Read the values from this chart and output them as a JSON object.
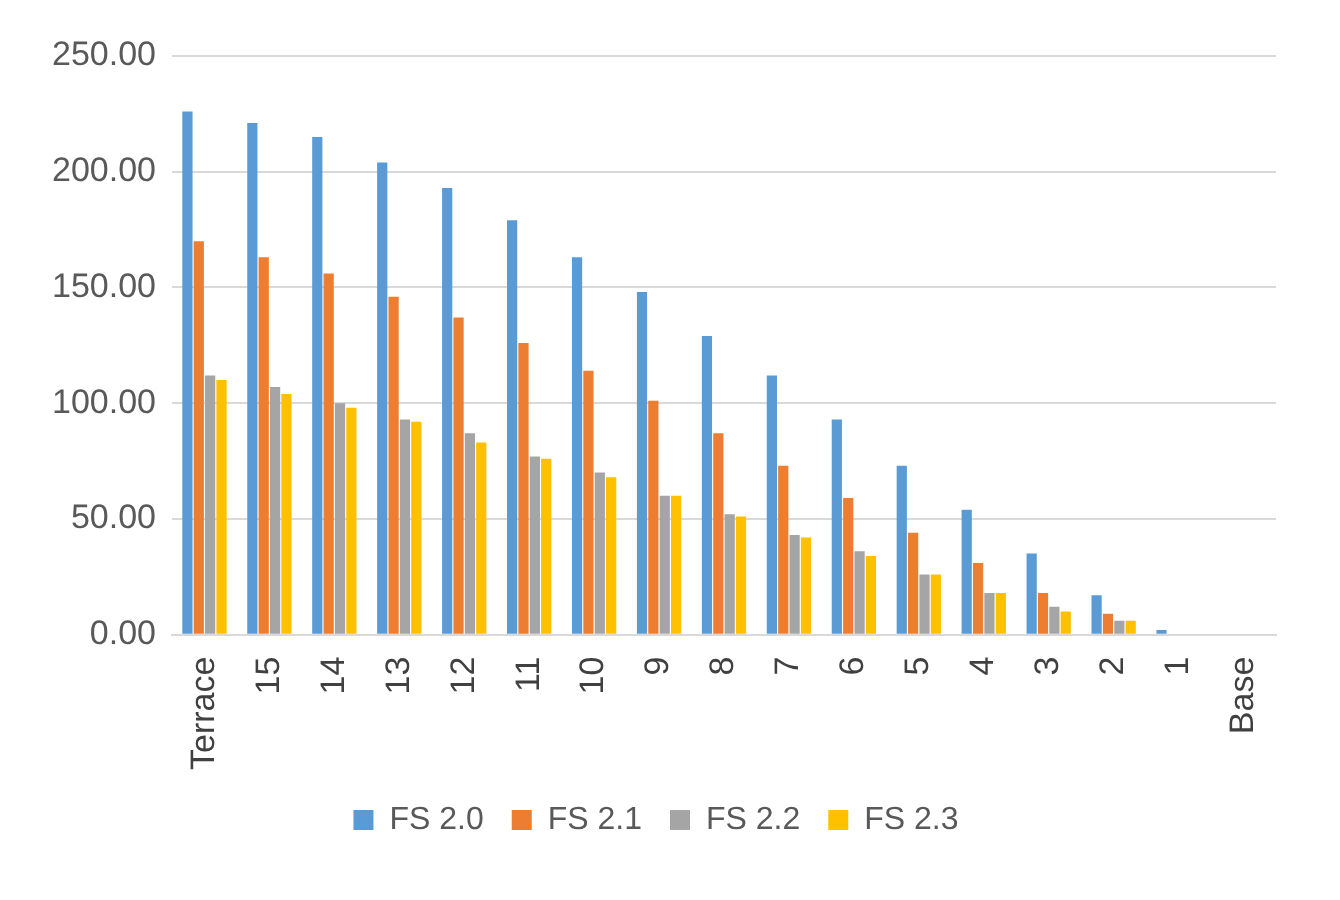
{
  "chart_data": {
    "type": "bar",
    "categories": [
      "Terrace",
      "15",
      "14",
      "13",
      "12",
      "11",
      "10",
      "9",
      "8",
      "7",
      "6",
      "5",
      "4",
      "3",
      "2",
      "1",
      "Base"
    ],
    "series": [
      {
        "name": "FS 2.0",
        "color": "#5b9bd5",
        "values": [
          226,
          221,
          215,
          204,
          193,
          179,
          163,
          148,
          129,
          112,
          93,
          73,
          54,
          35,
          17,
          2,
          0
        ]
      },
      {
        "name": "FS 2.1",
        "color": "#ed7d31",
        "values": [
          170,
          163,
          156,
          146,
          137,
          126,
          114,
          101,
          87,
          73,
          59,
          44,
          31,
          18,
          9,
          0,
          0
        ]
      },
      {
        "name": "FS 2.2",
        "color": "#a5a5a5",
        "values": [
          112,
          107,
          100,
          93,
          87,
          77,
          70,
          60,
          52,
          43,
          36,
          26,
          18,
          12,
          6,
          0,
          0
        ]
      },
      {
        "name": "FS 2.3",
        "color": "#ffc000",
        "values": [
          110,
          104,
          98,
          92,
          83,
          76,
          68,
          60,
          51,
          42,
          34,
          26,
          18,
          10,
          6,
          0,
          0
        ]
      }
    ],
    "ylim": [
      0,
      250
    ],
    "yticks": [
      {
        "value": 0,
        "label": "0.00"
      },
      {
        "value": 50,
        "label": "50.00"
      },
      {
        "value": 100,
        "label": "100.00"
      },
      {
        "value": 150,
        "label": "150.00"
      },
      {
        "value": 200,
        "label": "200.00"
      },
      {
        "value": 250,
        "label": "250.00"
      }
    ],
    "grid": "y",
    "legend": "bottom"
  }
}
